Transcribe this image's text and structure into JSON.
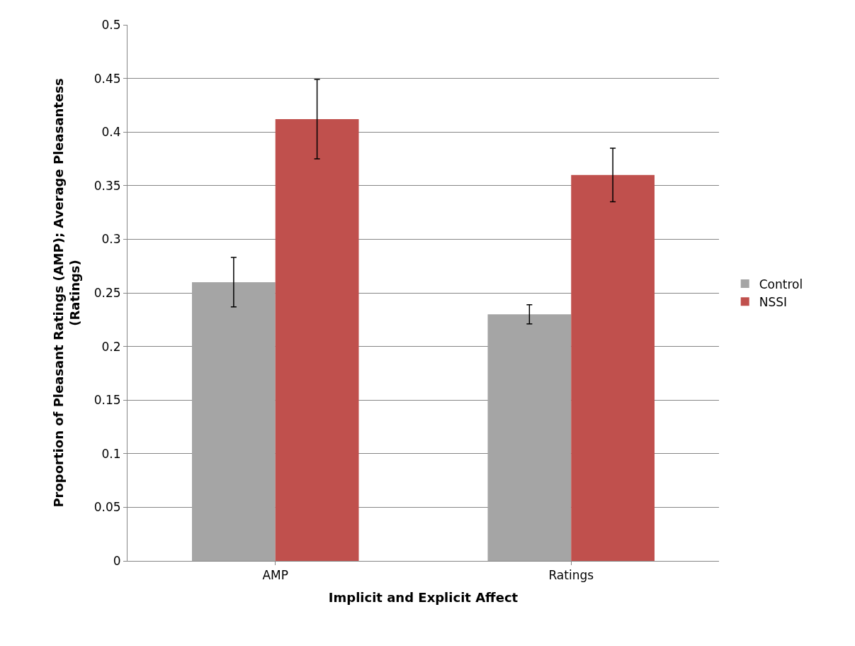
{
  "chart_data": {
    "type": "bar",
    "xlabel": "Implicit and Explicit Affect",
    "ylabel": "Proportion of Pleasant Ratings (AMP); Average Pleasantess (Ratings)",
    "categories": [
      "AMP",
      "Ratings"
    ],
    "series": [
      {
        "name": "Control",
        "color": "#a5a5a5",
        "values": [
          0.26,
          0.23
        ],
        "errors": [
          [
            0.237,
            0.283
          ],
          [
            0.221,
            0.239
          ]
        ]
      },
      {
        "name": "NSSI",
        "color": "#c0504d",
        "values": [
          0.412,
          0.36
        ],
        "errors": [
          [
            0.375,
            0.449
          ],
          [
            0.335,
            0.385
          ]
        ]
      }
    ],
    "ylim": [
      0,
      0.5
    ],
    "yticks": [
      0,
      0.05,
      0.1,
      0.15,
      0.2,
      0.25,
      0.3,
      0.35,
      0.4,
      0.45,
      0.5
    ],
    "grid": "y",
    "legend": "right"
  }
}
